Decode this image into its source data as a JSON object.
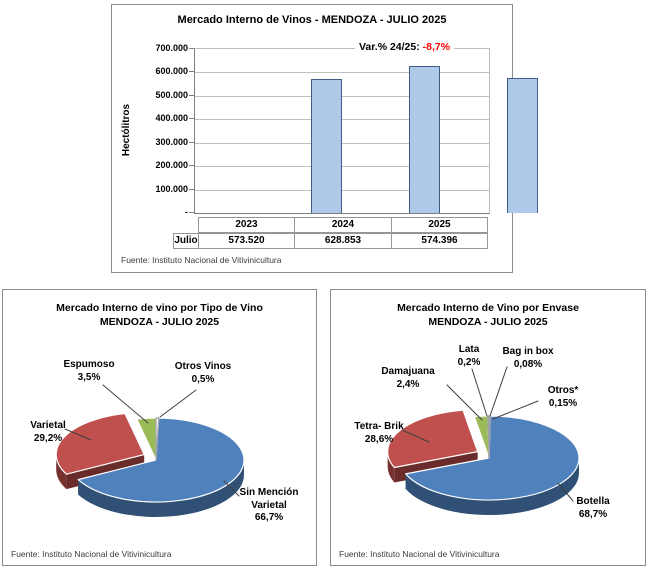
{
  "chart_data": [
    {
      "type": "bar",
      "title": "Mercado Interno de Vinos - MENDOZA  - JULIO 2025",
      "variation_label": "Var.% 24/25:",
      "variation_value": "-8,7%",
      "variation_color": "#FF0000",
      "ylabel": "Hectólitros",
      "yticks": [
        "700.000",
        "600.000",
        "500.000",
        "400.000",
        "300.000",
        "200.000",
        "100.000",
        "-"
      ],
      "ylim": [
        0,
        700000
      ],
      "grid": true,
      "categories": [
        "2023",
        "2024",
        "2025"
      ],
      "row_label": "Julio",
      "values": [
        573520,
        628853,
        574396
      ],
      "value_labels": [
        "573.520",
        "628.853",
        "574.396"
      ],
      "bar_fill": "#AFC9E9",
      "bar_border": "#3F5C84",
      "source": "Fuente: Instituto Nacional de Vitivinicultura"
    },
    {
      "type": "pie",
      "title": "Mercado Interno de vino por Tipo de Vino",
      "subtitle": "MENDOZA - JULIO 2025",
      "legend_position": "callout-labels",
      "slices": [
        {
          "label": "Otros Vinos",
          "pct": 0.5,
          "pct_label": "0,5%",
          "color": "#FFFFFF"
        },
        {
          "label": "Sin Mención Varietal",
          "pct": 66.7,
          "pct_label": "66,7%",
          "color": "#4F81BD"
        },
        {
          "label": "Varietal",
          "pct": 29.2,
          "pct_label": "29,2%",
          "color": "#C0504D",
          "exploded": true
        },
        {
          "label": "Espumoso",
          "pct": 3.5,
          "pct_label": "3,5%",
          "color": "#9BBB59"
        }
      ],
      "source": "Fuente: Instituto Nacional de Vitivinicultura"
    },
    {
      "type": "pie",
      "title": "Mercado Interno de Vino por Envase",
      "subtitle": "MENDOZA - JULIO 2025",
      "legend_position": "callout-labels",
      "slices": [
        {
          "label": "Bag in box",
          "pct": 0.08,
          "pct_label": "0,08%",
          "color": "#FFFFFF"
        },
        {
          "label": "Otros*",
          "pct": 0.15,
          "pct_label": "0,15%",
          "color": "#FFFFFF"
        },
        {
          "label": "Botella",
          "pct": 68.7,
          "pct_label": "68,7%",
          "color": "#4F81BD"
        },
        {
          "label": "Tetra- Brik",
          "pct": 28.6,
          "pct_label": "28,6%",
          "color": "#C0504D",
          "exploded": true
        },
        {
          "label": "Damajuana",
          "pct": 2.4,
          "pct_label": "2,4%",
          "color": "#9BBB59"
        },
        {
          "label": "Lata",
          "pct": 0.2,
          "pct_label": "0,2%",
          "color": "#FFFFFF"
        }
      ],
      "source": "Fuente: Instituto Nacional de Vitivinicultura"
    }
  ]
}
